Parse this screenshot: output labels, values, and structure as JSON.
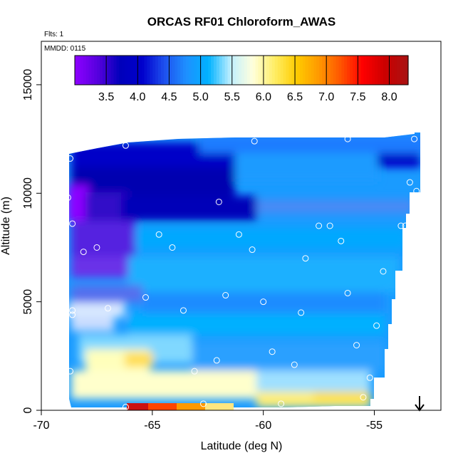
{
  "chart_data": {
    "type": "heatmap",
    "title": "ORCAS RF01 Chloroform_AWAS",
    "flights_label": "Flts: 1",
    "date_label": "MMDD: 0115",
    "xlabel": "Latitude (deg N)",
    "ylabel": "Altitude (m)",
    "xlim": [
      -70,
      -52
    ],
    "ylim": [
      0,
      17000
    ],
    "xticks": [
      -70,
      -65,
      -60,
      -55
    ],
    "yticks": [
      0,
      5000,
      10000,
      15000
    ],
    "colorbar": {
      "range": [
        3.0,
        8.3
      ],
      "ticks": [
        3.5,
        4.0,
        4.5,
        5.0,
        5.5,
        6.0,
        6.5,
        7.0,
        7.5,
        8.0
      ],
      "colors": [
        "#8b00ff",
        "#5500dd",
        "#0000bb",
        "#0000cc",
        "#1e50ee",
        "#1e90ff",
        "#00b2ff",
        "#bfefff",
        "#ffffdd",
        "#ffee66",
        "#ffcc00",
        "#ff9900",
        "#ff5500",
        "#ff0000",
        "#cc0000",
        "#aa1111"
      ]
    },
    "samples": [
      {
        "lat": -68.7,
        "alt": 11600
      },
      {
        "lat": -66.2,
        "alt": 12200
      },
      {
        "lat": -60.4,
        "alt": 12400
      },
      {
        "lat": -56.2,
        "alt": 12500
      },
      {
        "lat": -53.2,
        "alt": 12500
      },
      {
        "lat": -68.8,
        "alt": 9800
      },
      {
        "lat": -62.0,
        "alt": 9600
      },
      {
        "lat": -53.4,
        "alt": 10500
      },
      {
        "lat": -53.1,
        "alt": 10100
      },
      {
        "lat": -68.6,
        "alt": 8600
      },
      {
        "lat": -64.7,
        "alt": 8100
      },
      {
        "lat": -61.1,
        "alt": 8100
      },
      {
        "lat": -57.5,
        "alt": 8500
      },
      {
        "lat": -57.0,
        "alt": 8500
      },
      {
        "lat": -53.8,
        "alt": 8500
      },
      {
        "lat": -53.6,
        "alt": 8500
      },
      {
        "lat": -68.1,
        "alt": 7300
      },
      {
        "lat": -67.5,
        "alt": 7500
      },
      {
        "lat": -64.1,
        "alt": 7500
      },
      {
        "lat": -60.5,
        "alt": 7400
      },
      {
        "lat": -56.5,
        "alt": 7800
      },
      {
        "lat": -58.1,
        "alt": 7000
      },
      {
        "lat": -68.9,
        "alt": 6100
      },
      {
        "lat": -54.6,
        "alt": 6400
      },
      {
        "lat": -65.3,
        "alt": 5200
      },
      {
        "lat": -61.7,
        "alt": 5300
      },
      {
        "lat": -60.0,
        "alt": 5000
      },
      {
        "lat": -56.2,
        "alt": 5400
      },
      {
        "lat": -68.6,
        "alt": 4600
      },
      {
        "lat": -68.6,
        "alt": 4400
      },
      {
        "lat": -67.0,
        "alt": 4700
      },
      {
        "lat": -63.6,
        "alt": 4600
      },
      {
        "lat": -58.3,
        "alt": 4500
      },
      {
        "lat": -54.9,
        "alt": 3900
      },
      {
        "lat": -59.6,
        "alt": 2700
      },
      {
        "lat": -55.8,
        "alt": 3000
      },
      {
        "lat": -62.1,
        "alt": 2300
      },
      {
        "lat": -58.6,
        "alt": 2100
      },
      {
        "lat": -68.7,
        "alt": 1800
      },
      {
        "lat": -63.1,
        "alt": 1800
      },
      {
        "lat": -55.2,
        "alt": 1500
      },
      {
        "lat": -55.5,
        "alt": 600
      },
      {
        "lat": -62.7,
        "alt": 300
      },
      {
        "lat": -59.2,
        "alt": 300
      },
      {
        "lat": -66.2,
        "alt": 150
      }
    ]
  }
}
